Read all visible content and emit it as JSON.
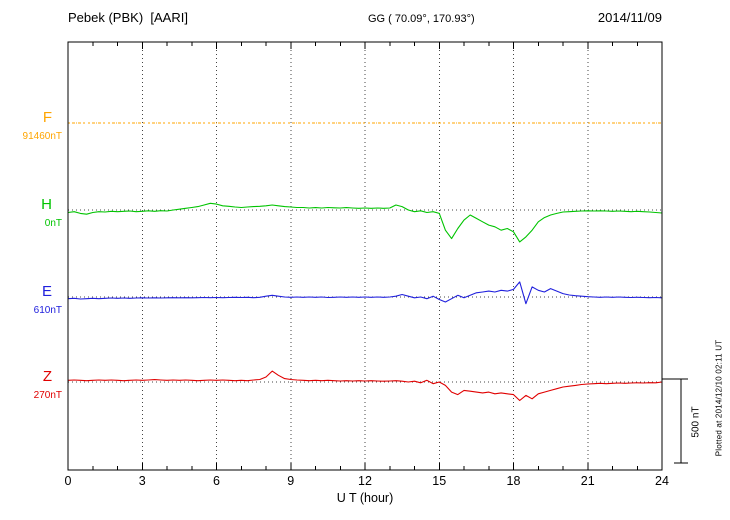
{
  "header": {
    "station": "Pebek (PBK)  [AARI]",
    "coords": "GG ( 70.09°, 170.93°)",
    "date": "2014/11/09"
  },
  "footer": {
    "xlabel": "U T (hour)"
  },
  "side": {
    "scalebar_label": "500 nT",
    "plotted_note": "Plotted at 2014/12/10 02:11 UT"
  },
  "axis": {
    "tick_labels": [
      "0",
      "3",
      "6",
      "9",
      "12",
      "15",
      "18",
      "21",
      "24"
    ]
  },
  "chart_data": {
    "type": "line",
    "title": "Pebek (PBK) [AARI] magnetogram",
    "date": "2014/11/09",
    "xlabel": "U T (hour)",
    "x_start_hour": 0,
    "x_end_hour": 24,
    "x_step_hours": 0.25,
    "x_ticks": [
      0,
      3,
      6,
      9,
      12,
      15,
      18,
      21,
      24
    ],
    "scale_bar_nT": 500,
    "grid": "vertical-dotted",
    "series": [
      {
        "name": "F",
        "baseline_label": "91460nT",
        "baseline_nT": 91460,
        "color": "#FFA500",
        "line_style": "dotted",
        "values": [
          0,
          0,
          0,
          0,
          0,
          0,
          0,
          0,
          0,
          0,
          0,
          0,
          0,
          0,
          0,
          0,
          0,
          0,
          0,
          0,
          0,
          0,
          0,
          0,
          0,
          0,
          0,
          0,
          0,
          0,
          0,
          0,
          0,
          0,
          0,
          0,
          0,
          0,
          0,
          0,
          0,
          0,
          0,
          0,
          0,
          0,
          0,
          0,
          0,
          0,
          0,
          0,
          0,
          0,
          0,
          0,
          0,
          0,
          0,
          0,
          0,
          0,
          0,
          0,
          0,
          0,
          0,
          0,
          0,
          0,
          0,
          0,
          0,
          0,
          0,
          0,
          0,
          0,
          0,
          0,
          0,
          0,
          0,
          0,
          0,
          0,
          0,
          0,
          0,
          0,
          0,
          0,
          0,
          0,
          0,
          0,
          0
        ]
      },
      {
        "name": "H",
        "baseline_label": "0nT",
        "baseline_nT": 0,
        "color": "#00C400",
        "line_style": "solid",
        "values": [
          -15,
          -10,
          -20,
          -25,
          -15,
          -10,
          -12,
          -8,
          -10,
          -8,
          -6,
          -10,
          -8,
          -5,
          -8,
          -4,
          -6,
          0,
          5,
          10,
          15,
          20,
          30,
          40,
          35,
          25,
          22,
          18,
          15,
          18,
          20,
          22,
          25,
          30,
          25,
          20,
          18,
          15,
          15,
          12,
          14,
          12,
          15,
          13,
          12,
          14,
          12,
          10,
          12,
          10,
          12,
          10,
          12,
          30,
          20,
          0,
          -10,
          -5,
          -15,
          -10,
          -20,
          -120,
          -170,
          -110,
          -60,
          -30,
          -50,
          -70,
          -90,
          -100,
          -120,
          -110,
          -130,
          -190,
          -160,
          -120,
          -70,
          -45,
          -30,
          -20,
          -12,
          -10,
          -8,
          -6,
          -5,
          -6,
          -5,
          -6,
          -8,
          -6,
          -8,
          -10,
          -8,
          -10,
          -12,
          -15,
          -18
        ]
      },
      {
        "name": "E",
        "baseline_label": "610nT",
        "baseline_nT": 610,
        "color": "#2020DD",
        "line_style": "solid",
        "values": [
          -10,
          -8,
          -12,
          -10,
          -8,
          -10,
          -8,
          -6,
          -8,
          -6,
          -8,
          -6,
          -5,
          -6,
          -5,
          -6,
          -5,
          -4,
          -5,
          -4,
          -5,
          -4,
          -3,
          -4,
          -3,
          -4,
          -3,
          -2,
          -3,
          -2,
          -4,
          -2,
          5,
          10,
          5,
          0,
          -2,
          0,
          -2,
          0,
          -2,
          0,
          -3,
          -2,
          0,
          -2,
          0,
          -2,
          0,
          -2,
          0,
          -2,
          0,
          5,
          15,
          5,
          -5,
          0,
          -10,
          5,
          -15,
          -30,
          -10,
          10,
          -5,
          10,
          25,
          30,
          35,
          30,
          40,
          35,
          45,
          90,
          -40,
          60,
          40,
          30,
          50,
          35,
          20,
          12,
          8,
          5,
          2,
          0,
          -2,
          0,
          -2,
          0,
          -2,
          -3,
          -2,
          -3,
          -4,
          -3,
          -5
        ]
      },
      {
        "name": "Z",
        "baseline_label": "270nT",
        "baseline_nT": 270,
        "color": "#E00000",
        "line_style": "solid",
        "values": [
          10,
          12,
          10,
          8,
          10,
          12,
          10,
          12,
          10,
          8,
          10,
          12,
          10,
          12,
          14,
          12,
          10,
          12,
          10,
          12,
          10,
          8,
          10,
          12,
          10,
          12,
          10,
          8,
          10,
          8,
          12,
          15,
          30,
          65,
          40,
          20,
          15,
          12,
          10,
          8,
          10,
          8,
          10,
          8,
          6,
          8,
          6,
          8,
          6,
          8,
          6,
          5,
          6,
          8,
          5,
          0,
          5,
          -5,
          10,
          -10,
          0,
          -20,
          -60,
          -75,
          -50,
          -55,
          -60,
          -65,
          -60,
          -70,
          -65,
          -70,
          -75,
          -110,
          -80,
          -100,
          -70,
          -60,
          -50,
          -40,
          -30,
          -25,
          -20,
          -15,
          -12,
          -10,
          -8,
          -10,
          -8,
          -6,
          -8,
          -6,
          -5,
          -6,
          -4,
          -5,
          0
        ]
      }
    ]
  }
}
